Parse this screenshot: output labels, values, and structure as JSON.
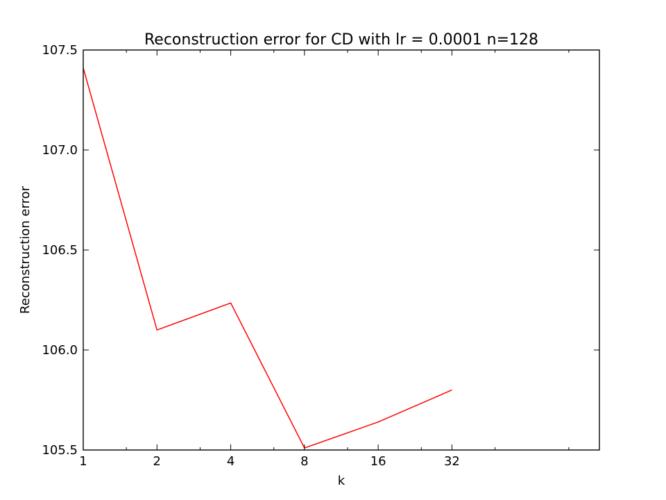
{
  "chart_data": {
    "type": "line",
    "title": "Reconstruction error for CD with lr = 0.0001 n=128",
    "xlabel": "k",
    "ylabel": "Reconstruction error",
    "x_scale": "log2",
    "xlim": [
      1,
      128
    ],
    "ylim": [
      105.5,
      107.5
    ],
    "x_tick_values": [
      1,
      2,
      4,
      8,
      16,
      32
    ],
    "x_tick_labels": [
      "1",
      "2",
      "4",
      "8",
      "16",
      "32"
    ],
    "y_tick_values": [
      105.5,
      106.0,
      106.5,
      107.0,
      107.5
    ],
    "y_tick_labels": [
      "105.5",
      "106.0",
      "106.5",
      "107.0",
      "107.5"
    ],
    "grid": false,
    "legend": "none",
    "series": [
      {
        "name": "reconstruction-error",
        "color": "#ff0000",
        "x": [
          1,
          2,
          4,
          8,
          16,
          32
        ],
        "y": [
          107.41,
          106.1,
          106.235,
          105.51,
          105.64,
          105.8
        ]
      }
    ]
  }
}
